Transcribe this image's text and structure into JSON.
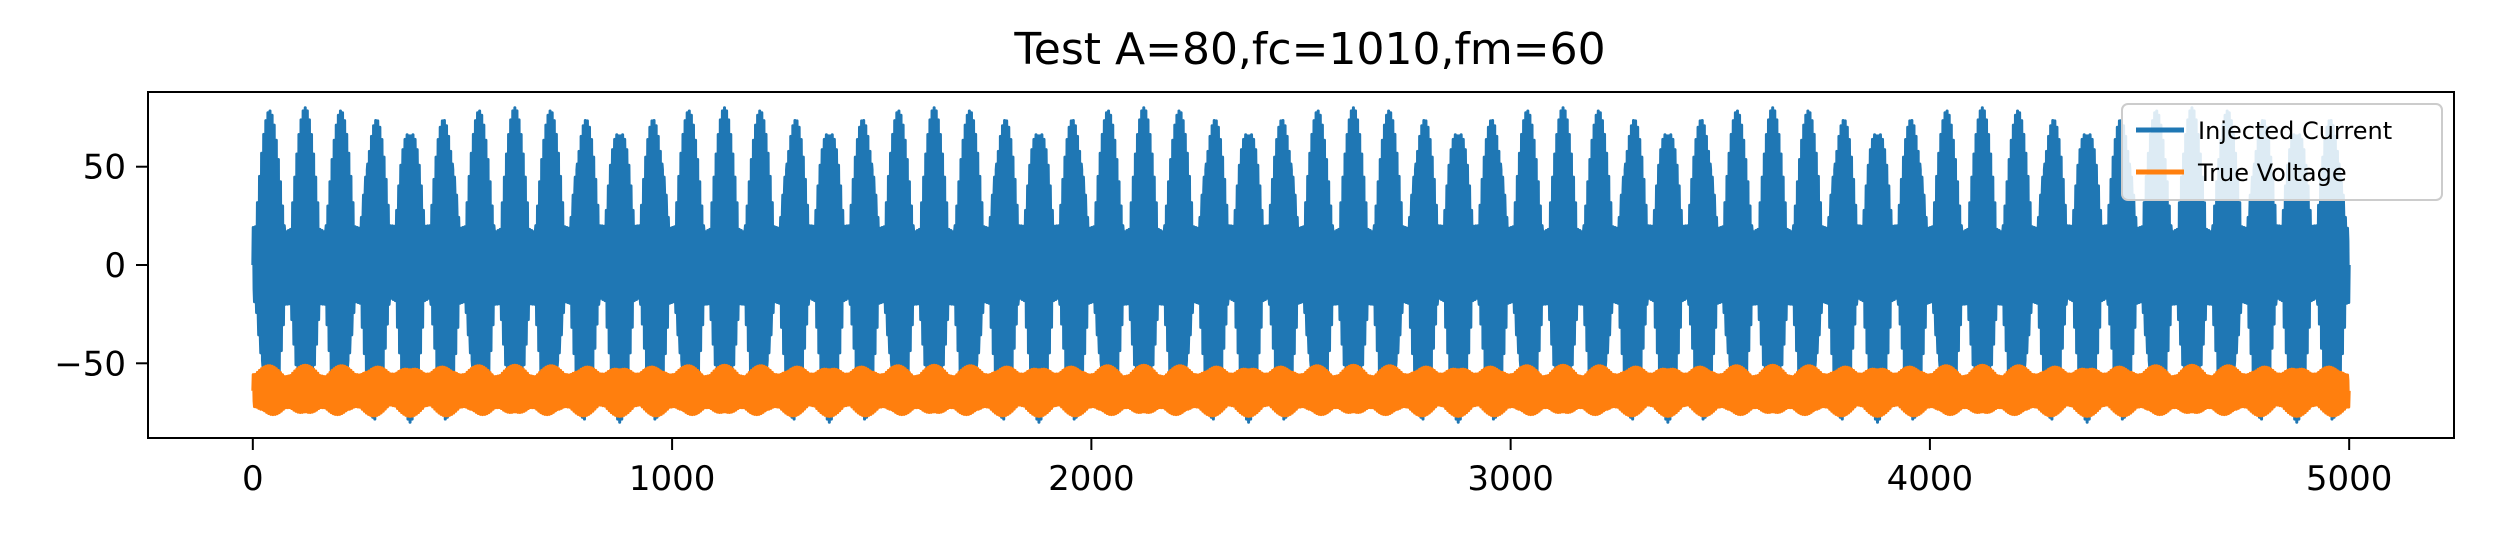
{
  "chart_data": {
    "type": "line",
    "title": "Test A=80,fc=1010,fm=60",
    "xlabel": "",
    "ylabel": "",
    "xlim": [
      -250,
      5250
    ],
    "ylim": [
      -88,
      88
    ],
    "x_ticks": [
      0,
      1000,
      2000,
      3000,
      4000,
      5000
    ],
    "y_ticks": [
      -50,
      0,
      50
    ],
    "y_tick_labels": [
      "−50",
      "0",
      "50"
    ],
    "grid": false,
    "legend": "top-right",
    "series": [
      {
        "name": "Injected Current",
        "color": "#1f77b4",
        "amplitude": 80,
        "carrier_freq": 1010,
        "mod_freq": 60,
        "x_range": [
          0,
          5000
        ],
        "offset": 0
      },
      {
        "name": "True Voltage",
        "color": "#ff7f0e",
        "amplitude": 13,
        "carrier_freq": 1010,
        "mod_freq": 60,
        "x_range": [
          0,
          5000
        ],
        "offset": -64
      }
    ]
  }
}
